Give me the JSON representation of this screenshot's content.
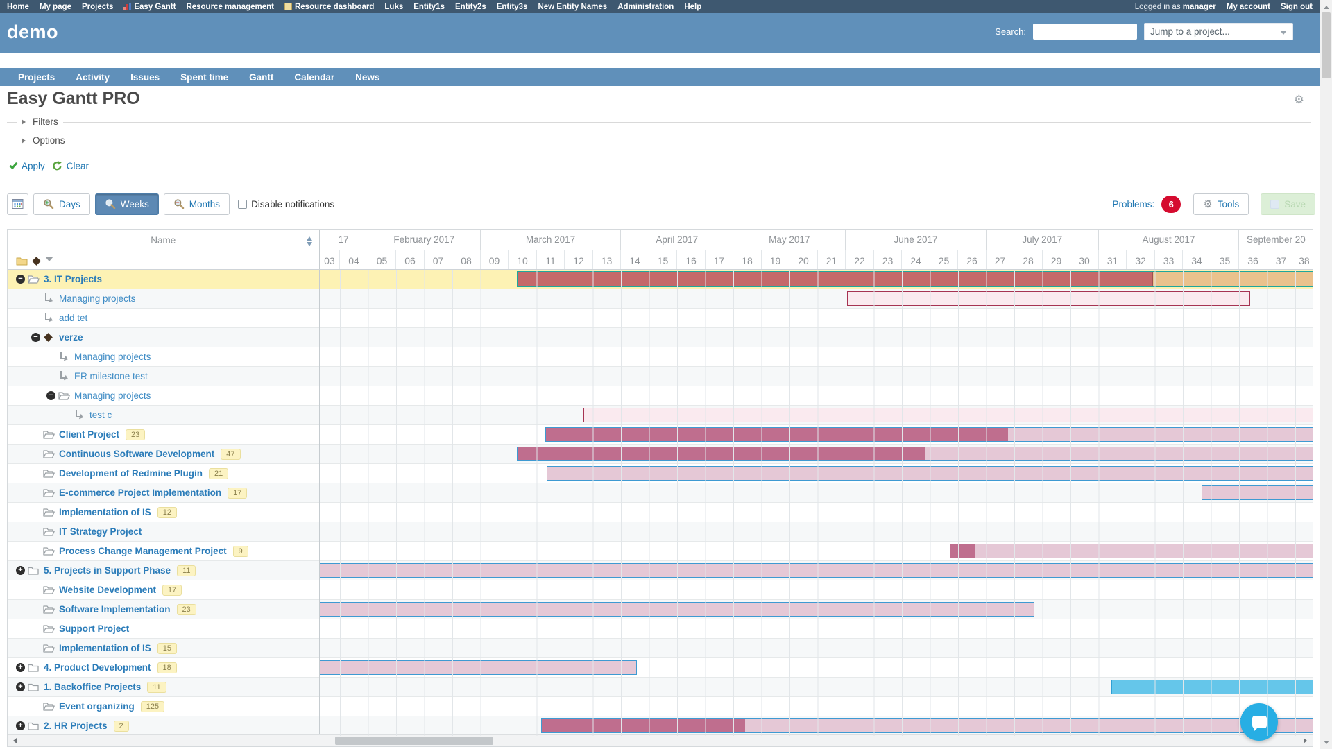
{
  "topbar": {
    "items": [
      {
        "label": "Home"
      },
      {
        "label": "My page"
      },
      {
        "label": "Projects"
      },
      {
        "label": "Easy Gantt",
        "icon": "gantt-chart-icon"
      },
      {
        "label": "Resource management"
      },
      {
        "label": "Resource dashboard",
        "icon": "dashboard-icon"
      },
      {
        "label": "Luks"
      },
      {
        "label": "Entity1s"
      },
      {
        "label": "Entity2s"
      },
      {
        "label": "Entity3s"
      },
      {
        "label": "New Entity Names"
      },
      {
        "label": "Administration"
      },
      {
        "label": "Help"
      }
    ],
    "logged_in_prefix": "Logged in as",
    "user": "manager",
    "my_account": "My account",
    "sign_out": "Sign out"
  },
  "header": {
    "app_title": "demo",
    "search_label": "Search:",
    "search_value": "",
    "jump_placeholder": "Jump to a project..."
  },
  "tabs": [
    "Projects",
    "Activity",
    "Issues",
    "Spent time",
    "Gantt",
    "Calendar",
    "News"
  ],
  "page": {
    "title": "Easy Gantt PRO",
    "filters_label": "Filters",
    "options_label": "Options",
    "apply_label": "Apply",
    "clear_label": "Clear"
  },
  "toolbar": {
    "days_label": "Days",
    "weeks_label": "Weeks",
    "months_label": "Months",
    "active_zoom": "Weeks",
    "disable_notifications_label": "Disable notifications",
    "notifications_checked": false,
    "problems_label": "Problems:",
    "problems_count": "6",
    "tools_label": "Tools",
    "save_label": "Save"
  },
  "gantt": {
    "name_header": "Name",
    "months": [
      {
        "label": "17",
        "span": 2
      },
      {
        "label": "February 2017",
        "span": 4
      },
      {
        "label": "March 2017",
        "span": 5
      },
      {
        "label": "April 2017",
        "span": 4
      },
      {
        "label": "May 2017",
        "span": 4
      },
      {
        "label": "June 2017",
        "span": 5
      },
      {
        "label": "July 2017",
        "span": 4
      },
      {
        "label": "August 2017",
        "span": 5
      },
      {
        "label": "September 20",
        "span": 3
      }
    ],
    "weeks": [
      "03",
      "04",
      "05",
      "06",
      "07",
      "08",
      "09",
      "10",
      "11",
      "12",
      "13",
      "14",
      "15",
      "16",
      "17",
      "18",
      "19",
      "20",
      "21",
      "22",
      "23",
      "24",
      "25",
      "26",
      "27",
      "28",
      "29",
      "30",
      "31",
      "32",
      "33",
      "34",
      "35",
      "36",
      "37",
      "38"
    ],
    "rows": [
      {
        "name": "3. IT Projects",
        "level": 0,
        "toggle": "minus",
        "icon": "folder-open",
        "bold": true,
        "highlight": true,
        "bars": [
          {
            "type": "project",
            "from": 10.3,
            "split": 32.9,
            "to": 38.65
          }
        ]
      },
      {
        "name": "Managing projects",
        "level": 1,
        "icon": "subtask",
        "bars": [
          {
            "type": "baseline",
            "from": 22.05,
            "to": 36.4
          }
        ]
      },
      {
        "name": "add tet",
        "level": 1,
        "icon": "subtask"
      },
      {
        "name": "verze",
        "level": 1,
        "toggle": "minus",
        "icon": "diamond",
        "bold": true
      },
      {
        "name": "Managing projects",
        "level": 2,
        "icon": "subtask"
      },
      {
        "name": "ER milestone test",
        "level": 2,
        "icon": "subtask"
      },
      {
        "name": "Managing projects",
        "level": 2,
        "toggle": "minus",
        "icon": "folder-open"
      },
      {
        "name": "test c",
        "level": 3,
        "icon": "subtask",
        "bars": [
          {
            "type": "baseline",
            "from": 12.65,
            "to": 38.65
          }
        ]
      },
      {
        "name": "Client Project",
        "level": 1,
        "icon": "folder-open",
        "bold": true,
        "badge": "23",
        "bars": [
          {
            "type": "progress",
            "from": 11.3,
            "split": 27.75,
            "to": 38.65
          }
        ]
      },
      {
        "name": "Continuous Software Development",
        "level": 1,
        "icon": "folder-open",
        "bold": true,
        "badge": "47",
        "bars": [
          {
            "type": "progress",
            "from": 10.3,
            "split": 24.8,
            "to": 38.65
          }
        ]
      },
      {
        "name": "Development of Redmine Plugin",
        "level": 1,
        "icon": "folder-open",
        "bold": true,
        "badge": "21",
        "bars": [
          {
            "type": "progress",
            "from": 11.35,
            "split": 11.35,
            "to": 38.65
          }
        ]
      },
      {
        "name": "E-commerce Project Implementation",
        "level": 1,
        "icon": "folder-open",
        "bold": true,
        "badge": "17",
        "bars": [
          {
            "type": "progress",
            "from": 34.65,
            "split": 34.65,
            "to": 38.65
          }
        ]
      },
      {
        "name": "Implementation of IS",
        "level": 1,
        "icon": "folder-open",
        "bold": true,
        "badge": "12"
      },
      {
        "name": "IT Strategy Project",
        "level": 1,
        "icon": "folder-open",
        "bold": true
      },
      {
        "name": "Process Change Management Project",
        "level": 1,
        "icon": "folder-open",
        "bold": true,
        "badge": "9",
        "bars": [
          {
            "type": "progress",
            "from": 25.7,
            "split": 26.55,
            "to": 38.65
          }
        ]
      },
      {
        "name": "5. Projects in Support Phase",
        "level": 0,
        "toggle": "plus",
        "icon": "folder",
        "bold": true,
        "badge": "11",
        "bars": [
          {
            "type": "progress",
            "from": 3.25,
            "split": 3.25,
            "to": 38.65
          }
        ]
      },
      {
        "name": "Website Development",
        "level": 1,
        "icon": "folder-open",
        "bold": true,
        "badge": "17"
      },
      {
        "name": "Software Implementation",
        "level": 1,
        "icon": "folder-open",
        "bold": true,
        "badge": "23",
        "bars": [
          {
            "type": "progress",
            "from": 3.25,
            "split": 3.25,
            "to": 28.7
          }
        ]
      },
      {
        "name": "Support Project",
        "level": 1,
        "icon": "folder-open",
        "bold": true
      },
      {
        "name": "Implementation of IS",
        "level": 1,
        "icon": "folder-open",
        "bold": true,
        "badge": "15"
      },
      {
        "name": "4. Product Development",
        "level": 0,
        "toggle": "plus",
        "icon": "folder",
        "bold": true,
        "badge": "18",
        "bars": [
          {
            "type": "progress",
            "from": 3.25,
            "split": 3.25,
            "to": 14.55
          }
        ]
      },
      {
        "name": "1. Backoffice Projects",
        "level": 0,
        "toggle": "plus",
        "icon": "folder",
        "bold": true,
        "badge": "11",
        "bars": [
          {
            "type": "plan",
            "from": 31.45,
            "to": 38.65
          }
        ]
      },
      {
        "name": "Event organizing",
        "level": 1,
        "icon": "folder-open",
        "bold": true,
        "badge": "125"
      },
      {
        "name": "2. HR Projects",
        "level": 0,
        "toggle": "plus",
        "icon": "folder",
        "bold": true,
        "badge": "2",
        "bars": [
          {
            "type": "progress",
            "from": 11.15,
            "split": 18.4,
            "to": 38.65
          }
        ]
      }
    ],
    "colors": {
      "bar_done": "#bf6e8e",
      "bar_remaining": "#e5c8d6",
      "bar_border_blue": "#3e9ad2",
      "baseline_fill": "#faeaef",
      "baseline_border": "#a63352",
      "project_red": "#c5696a",
      "project_tan": "#eac28d",
      "project_border": "#1ea79d",
      "plan_fill": "#65c6ea",
      "plan_border": "#2f9fd4",
      "highlight_row": "#fdf2b4"
    }
  }
}
